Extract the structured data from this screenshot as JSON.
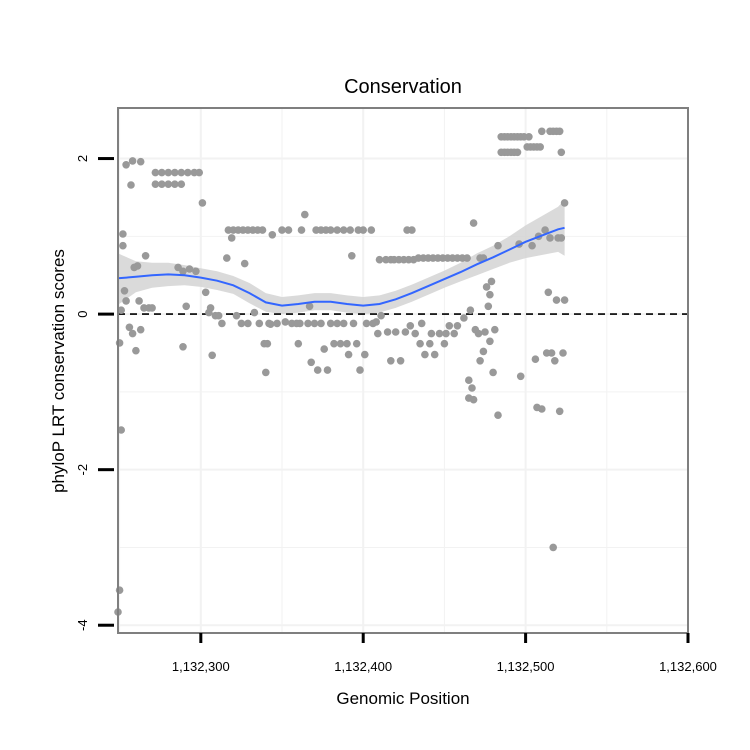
{
  "chart_data": {
    "type": "scatter",
    "title": "Conservation",
    "xlabel": "Genomic Position",
    "ylabel": "phyloP LRT conservation scores",
    "xlim": [
      1132249,
      1132600
    ],
    "ylim": [
      -4.1,
      2.65
    ],
    "x_ticks": [
      1132300,
      1132400,
      1132500,
      1132600
    ],
    "x_tick_labels": [
      "1,132,300",
      "1,132,400",
      "1,132,500",
      "1,132,600"
    ],
    "y_ticks": [
      -4,
      -2,
      0,
      2
    ],
    "y_tick_labels": [
      "-4",
      "-2",
      "0",
      "2"
    ],
    "grid": true,
    "reference_line": {
      "y": 0,
      "style": "dashed"
    },
    "colors": {
      "points": "#999999",
      "smooth": "#3366ff",
      "ribbon": "#d3d3d3",
      "grid": "#f2f2f2",
      "panel_border": "#7f7f7f"
    },
    "series": [
      {
        "name": "phyloP scores",
        "points": [
          [
            1132249,
            -3.83
          ],
          [
            1132250,
            -3.55
          ],
          [
            1132251,
            -1.49
          ],
          [
            1132250,
            -0.37
          ],
          [
            1132251,
            0.05
          ],
          [
            1132252,
            0.88
          ],
          [
            1132252,
            1.03
          ],
          [
            1132253,
            0.3
          ],
          [
            1132254,
            0.17
          ],
          [
            1132254,
            1.92
          ],
          [
            1132256,
            -0.17
          ],
          [
            1132257,
            1.66
          ],
          [
            1132258,
            1.97
          ],
          [
            1132258,
            -0.25
          ],
          [
            1132259,
            0.6
          ],
          [
            1132260,
            -0.47
          ],
          [
            1132261,
            0.62
          ],
          [
            1132262,
            0.17
          ],
          [
            1132263,
            1.96
          ],
          [
            1132263,
            -0.2
          ],
          [
            1132265,
            0.08
          ],
          [
            1132266,
            0.75
          ],
          [
            1132268,
            0.08
          ],
          [
            1132270,
            0.08
          ],
          [
            1132272,
            1.67
          ],
          [
            1132272,
            1.82
          ],
          [
            1132276,
            1.67
          ],
          [
            1132276,
            1.82
          ],
          [
            1132280,
            1.67
          ],
          [
            1132280,
            1.82
          ],
          [
            1132284,
            1.67
          ],
          [
            1132284,
            1.82
          ],
          [
            1132286,
            0.6
          ],
          [
            1132288,
            1.67
          ],
          [
            1132288,
            1.82
          ],
          [
            1132289,
            0.55
          ],
          [
            1132289,
            -0.42
          ],
          [
            1132291,
            0.1
          ],
          [
            1132292,
            1.82
          ],
          [
            1132293,
            0.58
          ],
          [
            1132296,
            1.82
          ],
          [
            1132297,
            0.55
          ],
          [
            1132299,
            1.82
          ],
          [
            1132301,
            1.43
          ],
          [
            1132303,
            0.28
          ],
          [
            1132305,
            0.02
          ],
          [
            1132306,
            0.08
          ],
          [
            1132307,
            -0.53
          ],
          [
            1132309,
            -0.02
          ],
          [
            1132311,
            -0.02
          ],
          [
            1132313,
            -0.12
          ],
          [
            1132316,
            0.72
          ],
          [
            1132317,
            1.08
          ],
          [
            1132319,
            0.98
          ],
          [
            1132320,
            1.08
          ],
          [
            1132322,
            -0.02
          ],
          [
            1132323,
            1.08
          ],
          [
            1132325,
            -0.12
          ],
          [
            1132326,
            1.08
          ],
          [
            1132327,
            0.65
          ],
          [
            1132329,
            1.08
          ],
          [
            1132329,
            -0.12
          ],
          [
            1132332,
            1.08
          ],
          [
            1132333,
            0.02
          ],
          [
            1132335,
            1.08
          ],
          [
            1132336,
            -0.12
          ],
          [
            1132338,
            1.08
          ],
          [
            1132339,
            -0.38
          ],
          [
            1132340,
            -0.75
          ],
          [
            1132341,
            -0.38
          ],
          [
            1132342,
            -0.12
          ],
          [
            1132343,
            -0.13
          ],
          [
            1132344,
            1.02
          ],
          [
            1132347,
            -0.12
          ],
          [
            1132350,
            1.08
          ],
          [
            1132352,
            -0.1
          ],
          [
            1132354,
            1.08
          ],
          [
            1132356,
            -0.12
          ],
          [
            1132359,
            -0.12
          ],
          [
            1132360,
            -0.38
          ],
          [
            1132361,
            -0.12
          ],
          [
            1132362,
            1.08
          ],
          [
            1132364,
            1.28
          ],
          [
            1132366,
            -0.12
          ],
          [
            1132367,
            0.1
          ],
          [
            1132368,
            -0.62
          ],
          [
            1132370,
            -0.12
          ],
          [
            1132371,
            1.08
          ],
          [
            1132372,
            -0.72
          ],
          [
            1132374,
            1.08
          ],
          [
            1132374,
            -0.12
          ],
          [
            1132376,
            -0.45
          ],
          [
            1132377,
            1.08
          ],
          [
            1132378,
            -0.72
          ],
          [
            1132380,
            1.08
          ],
          [
            1132380,
            -0.12
          ],
          [
            1132382,
            -0.38
          ],
          [
            1132384,
            1.08
          ],
          [
            1132384,
            -0.12
          ],
          [
            1132386,
            -0.38
          ],
          [
            1132388,
            1.08
          ],
          [
            1132388,
            -0.12
          ],
          [
            1132390,
            -0.38
          ],
          [
            1132391,
            -0.52
          ],
          [
            1132392,
            1.08
          ],
          [
            1132393,
            0.75
          ],
          [
            1132394,
            -0.12
          ],
          [
            1132396,
            -0.38
          ],
          [
            1132397,
            1.08
          ],
          [
            1132398,
            -0.72
          ],
          [
            1132400,
            1.08
          ],
          [
            1132401,
            -0.52
          ],
          [
            1132402,
            -0.12
          ],
          [
            1132405,
            1.08
          ],
          [
            1132406,
            -0.12
          ],
          [
            1132408,
            -0.1
          ],
          [
            1132409,
            -0.25
          ],
          [
            1132410,
            0.7
          ],
          [
            1132411,
            -0.02
          ],
          [
            1132414,
            0.7
          ],
          [
            1132415,
            -0.23
          ],
          [
            1132417,
            0.7
          ],
          [
            1132417,
            -0.6
          ],
          [
            1132419,
            0.7
          ],
          [
            1132420,
            -0.23
          ],
          [
            1132422,
            0.7
          ],
          [
            1132423,
            -0.6
          ],
          [
            1132425,
            0.7
          ],
          [
            1132426,
            -0.23
          ],
          [
            1132427,
            1.08
          ],
          [
            1132428,
            0.7
          ],
          [
            1132429,
            -0.15
          ],
          [
            1132430,
            1.08
          ],
          [
            1132431,
            0.7
          ],
          [
            1132432,
            -0.25
          ],
          [
            1132434,
            0.72
          ],
          [
            1132435,
            -0.38
          ],
          [
            1132436,
            -0.12
          ],
          [
            1132437,
            0.72
          ],
          [
            1132438,
            -0.52
          ],
          [
            1132440,
            0.72
          ],
          [
            1132441,
            -0.38
          ],
          [
            1132442,
            -0.25
          ],
          [
            1132443,
            0.72
          ],
          [
            1132444,
            -0.52
          ],
          [
            1132446,
            0.72
          ],
          [
            1132447,
            -0.25
          ],
          [
            1132449,
            0.72
          ],
          [
            1132450,
            -0.38
          ],
          [
            1132451,
            -0.25
          ],
          [
            1132452,
            0.72
          ],
          [
            1132453,
            -0.15
          ],
          [
            1132455,
            0.72
          ],
          [
            1132456,
            -0.25
          ],
          [
            1132458,
            0.72
          ],
          [
            1132458,
            -0.15
          ],
          [
            1132461,
            0.72
          ],
          [
            1132462,
            -0.05
          ],
          [
            1132464,
            0.72
          ],
          [
            1132465,
            -1.08
          ],
          [
            1132465,
            -0.85
          ],
          [
            1132466,
            0.05
          ],
          [
            1132467,
            -0.95
          ],
          [
            1132468,
            1.17
          ],
          [
            1132468,
            -1.1
          ],
          [
            1132469,
            -0.2
          ],
          [
            1132471,
            -0.25
          ],
          [
            1132472,
            0.72
          ],
          [
            1132472,
            -0.6
          ],
          [
            1132474,
            0.72
          ],
          [
            1132474,
            -0.48
          ],
          [
            1132475,
            -0.23
          ],
          [
            1132476,
            0.35
          ],
          [
            1132477,
            0.1
          ],
          [
            1132478,
            0.25
          ],
          [
            1132478,
            -0.35
          ],
          [
            1132479,
            0.42
          ],
          [
            1132480,
            -0.75
          ],
          [
            1132481,
            -0.2
          ],
          [
            1132483,
            0.88
          ],
          [
            1132483,
            -1.3
          ],
          [
            1132485,
            2.28
          ],
          [
            1132485,
            2.08
          ],
          [
            1132487,
            2.28
          ],
          [
            1132487,
            2.08
          ],
          [
            1132489,
            2.28
          ],
          [
            1132489,
            2.08
          ],
          [
            1132491,
            2.28
          ],
          [
            1132491,
            2.08
          ],
          [
            1132493,
            2.28
          ],
          [
            1132493,
            2.08
          ],
          [
            1132495,
            2.28
          ],
          [
            1132495,
            2.08
          ],
          [
            1132496,
            0.9
          ],
          [
            1132497,
            2.28
          ],
          [
            1132497,
            -0.8
          ],
          [
            1132499,
            2.28
          ],
          [
            1132501,
            2.15
          ],
          [
            1132502,
            2.28
          ],
          [
            1132503,
            2.15
          ],
          [
            1132504,
            0.88
          ],
          [
            1132505,
            2.15
          ],
          [
            1132506,
            -0.58
          ],
          [
            1132507,
            2.15
          ],
          [
            1132507,
            -1.2
          ],
          [
            1132508,
            1.0
          ],
          [
            1132509,
            2.15
          ],
          [
            1132510,
            2.35
          ],
          [
            1132510,
            -1.22
          ],
          [
            1132512,
            1.08
          ],
          [
            1132513,
            -0.5
          ],
          [
            1132514,
            0.28
          ],
          [
            1132515,
            2.35
          ],
          [
            1132515,
            0.98
          ],
          [
            1132516,
            -0.5
          ],
          [
            1132517,
            2.35
          ],
          [
            1132517,
            -3.0
          ],
          [
            1132518,
            -0.6
          ],
          [
            1132519,
            2.35
          ],
          [
            1132519,
            0.18
          ],
          [
            1132520,
            0.98
          ],
          [
            1132521,
            2.35
          ],
          [
            1132521,
            -1.25
          ],
          [
            1132522,
            2.08
          ],
          [
            1132522,
            0.98
          ],
          [
            1132523,
            -0.5
          ],
          [
            1132524,
            1.43
          ],
          [
            1132524,
            0.18
          ]
        ]
      },
      {
        "name": "loess fit",
        "x": [
          1132249,
          1132260,
          1132270,
          1132280,
          1132290,
          1132300,
          1132310,
          1132320,
          1132330,
          1132340,
          1132350,
          1132360,
          1132370,
          1132380,
          1132390,
          1132400,
          1132410,
          1132420,
          1132430,
          1132440,
          1132450,
          1132460,
          1132470,
          1132480,
          1132490,
          1132500,
          1132510,
          1132520,
          1132524
        ],
        "y": [
          0.46,
          0.48,
          0.5,
          0.51,
          0.5,
          0.47,
          0.43,
          0.37,
          0.27,
          0.15,
          0.11,
          0.13,
          0.16,
          0.16,
          0.13,
          0.11,
          0.13,
          0.19,
          0.27,
          0.36,
          0.45,
          0.54,
          0.64,
          0.73,
          0.83,
          0.93,
          1.01,
          1.09,
          1.11
        ],
        "lo": [
          0.12,
          0.28,
          0.34,
          0.36,
          0.37,
          0.35,
          0.31,
          0.26,
          0.14,
          0.03,
          0.0,
          0.02,
          0.05,
          0.05,
          0.02,
          0.0,
          0.02,
          0.08,
          0.16,
          0.25,
          0.34,
          0.42,
          0.5,
          0.58,
          0.66,
          0.72,
          0.76,
          0.8,
          0.75
        ],
        "hi": [
          0.78,
          0.68,
          0.66,
          0.66,
          0.63,
          0.59,
          0.55,
          0.49,
          0.4,
          0.27,
          0.22,
          0.24,
          0.27,
          0.27,
          0.24,
          0.22,
          0.24,
          0.3,
          0.38,
          0.47,
          0.56,
          0.66,
          0.78,
          0.88,
          1.0,
          1.14,
          1.26,
          1.38,
          1.47
        ]
      }
    ]
  }
}
